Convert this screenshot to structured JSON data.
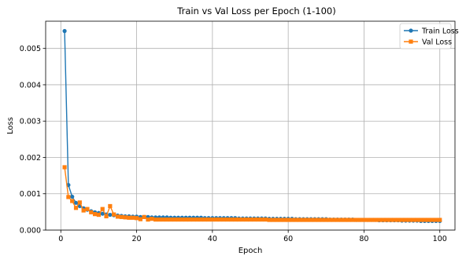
{
  "chart_data": {
    "type": "line",
    "title": "Train vs Val Loss per Epoch (1-100)",
    "xlabel": "Epoch",
    "ylabel": "Loss",
    "xlim": [
      -4,
      104
    ],
    "ylim": [
      0,
      0.00575
    ],
    "x_ticks": [
      0,
      20,
      40,
      60,
      80,
      100
    ],
    "x_tick_labels": [
      "0",
      "20",
      "40",
      "60",
      "80",
      "100"
    ],
    "y_ticks": [
      0,
      0.001,
      0.002,
      0.003,
      0.004,
      0.005
    ],
    "y_tick_labels": [
      "0.000",
      "0.001",
      "0.002",
      "0.003",
      "0.004",
      "0.005"
    ],
    "grid": true,
    "legend_position": "top-right",
    "x": [
      1,
      2,
      3,
      4,
      5,
      6,
      7,
      8,
      9,
      10,
      11,
      12,
      13,
      14,
      15,
      16,
      17,
      18,
      19,
      20,
      21,
      22,
      23,
      24,
      25,
      26,
      27,
      28,
      29,
      30,
      31,
      32,
      33,
      34,
      35,
      36,
      37,
      38,
      39,
      40,
      41,
      42,
      43,
      44,
      45,
      46,
      47,
      48,
      49,
      50,
      51,
      52,
      53,
      54,
      55,
      56,
      57,
      58,
      59,
      60,
      61,
      62,
      63,
      64,
      65,
      66,
      67,
      68,
      69,
      70,
      71,
      72,
      73,
      74,
      75,
      76,
      77,
      78,
      79,
      80,
      81,
      82,
      83,
      84,
      85,
      86,
      87,
      88,
      89,
      90,
      91,
      92,
      93,
      94,
      95,
      96,
      97,
      98,
      99,
      100
    ],
    "series": [
      {
        "name": "Train Loss",
        "color": "#1f77b4",
        "marker": "circle",
        "values": [
          0.00548,
          0.00124,
          0.00092,
          0.00075,
          0.00066,
          0.0006,
          0.00056,
          0.00052,
          0.00049,
          0.00047,
          0.00045,
          0.00043,
          0.00042,
          0.00041,
          0.0004,
          0.00039,
          0.00038,
          0.00038,
          0.00037,
          0.00037,
          0.00036,
          0.00036,
          0.00036,
          0.00035,
          0.00035,
          0.00035,
          0.00035,
          0.00035,
          0.00034,
          0.00034,
          0.00034,
          0.00034,
          0.00034,
          0.00034,
          0.00034,
          0.00034,
          0.00034,
          0.00033,
          0.00033,
          0.00033,
          0.00033,
          0.00033,
          0.00033,
          0.00033,
          0.00033,
          0.00033,
          0.00032,
          0.00032,
          0.00032,
          0.00032,
          0.00032,
          0.00032,
          0.00032,
          0.00032,
          0.00031,
          0.00031,
          0.00031,
          0.00031,
          0.00031,
          0.00031,
          0.00031,
          0.0003,
          0.0003,
          0.0003,
          0.0003,
          0.0003,
          0.0003,
          0.0003,
          0.0003,
          0.0003,
          0.00029,
          0.00029,
          0.00029,
          0.00029,
          0.00029,
          0.00029,
          0.00029,
          0.00028,
          0.00028,
          0.00028,
          0.00028,
          0.00028,
          0.00028,
          0.00027,
          0.00027,
          0.00027,
          0.00027,
          0.00027,
          0.00027,
          0.00026,
          0.00026,
          0.00026,
          0.00026,
          0.00026,
          0.00025,
          0.00025,
          0.00025,
          0.00025,
          0.00025,
          0.00025
        ]
      },
      {
        "name": "Val Loss",
        "color": "#ff7f0e",
        "marker": "square",
        "values": [
          0.00173,
          0.00091,
          0.0008,
          0.00061,
          0.00076,
          0.00054,
          0.00058,
          0.00049,
          0.00044,
          0.00042,
          0.00058,
          0.00038,
          0.00066,
          0.00043,
          0.00037,
          0.00036,
          0.00035,
          0.00034,
          0.00034,
          0.00033,
          0.0003,
          0.00036,
          0.00029,
          0.00031,
          0.00029,
          0.00029,
          0.00029,
          0.00029,
          0.00029,
          0.00029,
          0.00029,
          0.00029,
          0.00029,
          0.00029,
          0.00029,
          0.00029,
          0.00029,
          0.00029,
          0.00029,
          0.00029,
          0.00029,
          0.00029,
          0.00029,
          0.00029,
          0.00029,
          0.00029,
          0.00029,
          0.00029,
          0.00029,
          0.00029,
          0.00029,
          0.00029,
          0.00029,
          0.00029,
          0.00028,
          0.00028,
          0.00028,
          0.00028,
          0.00028,
          0.00028,
          0.00028,
          0.00028,
          0.00028,
          0.00028,
          0.00028,
          0.00028,
          0.00028,
          0.00028,
          0.00028,
          0.00028,
          0.00028,
          0.00028,
          0.00028,
          0.00028,
          0.00028,
          0.00028,
          0.00028,
          0.00028,
          0.00028,
          0.00028,
          0.00028,
          0.00028,
          0.00028,
          0.00028,
          0.00028,
          0.00028,
          0.00028,
          0.00028,
          0.00028,
          0.00028,
          0.00028,
          0.00028,
          0.00028,
          0.00028,
          0.00028,
          0.00028,
          0.00028,
          0.00028,
          0.00028,
          0.00028
        ]
      }
    ]
  }
}
